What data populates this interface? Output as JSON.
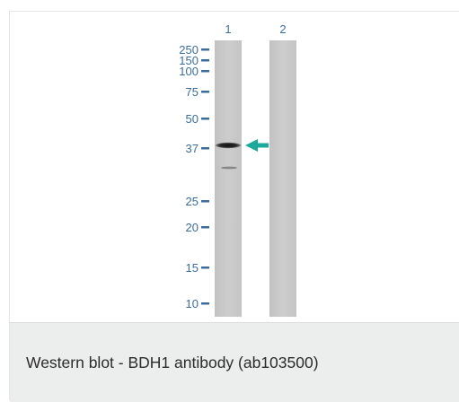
{
  "figure": {
    "lanes": [
      {
        "label": "1"
      },
      {
        "label": "2"
      }
    ],
    "markers": [
      {
        "label": "250",
        "kda": 250
      },
      {
        "label": "150",
        "kda": 150
      },
      {
        "label": "100",
        "kda": 100
      },
      {
        "label": "75",
        "kda": 75
      },
      {
        "label": "50",
        "kda": 50
      },
      {
        "label": "37",
        "kda": 37
      },
      {
        "label": "25",
        "kda": 25
      },
      {
        "label": "20",
        "kda": 20
      },
      {
        "label": "15",
        "kda": 15
      },
      {
        "label": "10",
        "kda": 10
      }
    ],
    "colors": {
      "lane": "#c9c9c9",
      "marker": "#3a6d9c",
      "arrow": "#1aa99a",
      "band": "#1e1e1e"
    },
    "arrow_icon": "arrow-left-icon"
  },
  "caption": {
    "text": "Western blot - BDH1 antibody (ab103500)"
  }
}
